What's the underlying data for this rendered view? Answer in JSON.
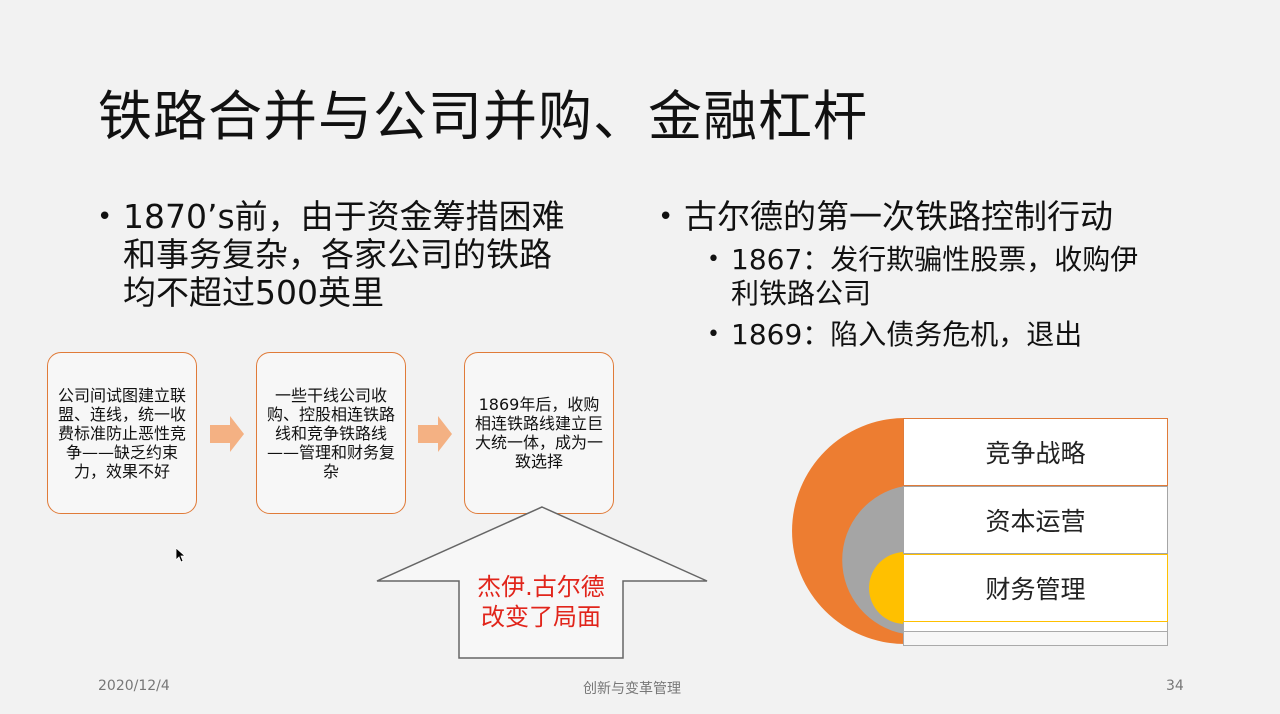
{
  "title": "铁路合并与公司并购、金融杠杆",
  "left_bullet": {
    "line1": "1870’s前，由于资金筹措困难",
    "line2": "和事务复杂，各家公司的铁路",
    "line3": "均不超过500英里"
  },
  "right_bullet": {
    "main": "古尔德的第一次铁路控制行动",
    "sub1_line1": "1867：发行欺骗性股票，收购伊",
    "sub1_line2": "利铁路公司",
    "sub2": "1869：陷入债务危机，退出"
  },
  "flow_boxes": [
    "公司间试图建立联盟、连线，统一收费标准防止恶性竞争——缺乏约束力，效果不好",
    "一些干线公司收购、控股相连铁路线和竞争铁路线——管理和财务复杂",
    "1869年后，收购相连铁路线建立巨大统一体，成为一致选择"
  ],
  "up_arrow": {
    "line1": "杰伊.古尔德",
    "line2": "改变了局面",
    "color": "#e1251b"
  },
  "strategy_table": [
    "竞争战略",
    "资本运营",
    "财务管理"
  ],
  "colors": {
    "orange": "#ed7d31",
    "gray": "#a5a5a5",
    "gold": "#ffc000",
    "arrow_fill": "#f4b183"
  },
  "footer": {
    "date": "2020/12/4",
    "center": "创新与变革管理",
    "page": "34"
  }
}
